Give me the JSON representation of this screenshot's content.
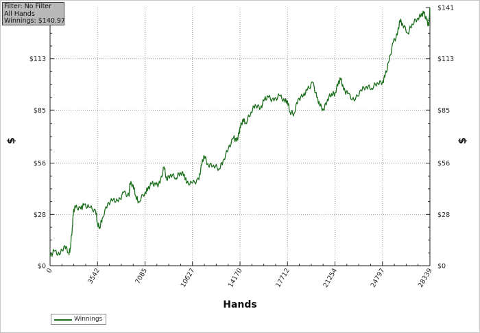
{
  "filter_box": {
    "line1": "Filter: No Filter",
    "line2": "All Hands",
    "line3": "Winnings: $140.97"
  },
  "legend": {
    "label": "Winnings",
    "color": "#1b6e1b"
  },
  "chart_data": {
    "type": "line",
    "xlabel": "Hands",
    "ylabel": "$",
    "xlim": [
      0,
      28339
    ],
    "ylim": [
      0,
      141
    ],
    "x_ticks": [
      "0",
      "3542",
      "7085",
      "10627",
      "14170",
      "17712",
      "21254",
      "24797",
      "28339"
    ],
    "y_ticks": [
      "$0",
      "$28",
      "$56",
      "$85",
      "$113",
      "$141"
    ],
    "grid": true,
    "legend_position": "bottom-left",
    "series": [
      {
        "name": "Winnings",
        "color": "#1b6e1b",
        "points": [
          [
            0,
            5
          ],
          [
            300,
            8
          ],
          [
            700,
            6
          ],
          [
            1100,
            11
          ],
          [
            1400,
            7
          ],
          [
            1500,
            9
          ],
          [
            1650,
            20
          ],
          [
            1750,
            30
          ],
          [
            1900,
            32
          ],
          [
            2300,
            31
          ],
          [
            2500,
            33
          ],
          [
            2900,
            32
          ],
          [
            3400,
            30
          ],
          [
            3542,
            23
          ],
          [
            3700,
            21
          ],
          [
            3900,
            26
          ],
          [
            4300,
            34
          ],
          [
            4700,
            36
          ],
          [
            5100,
            35
          ],
          [
            5500,
            40
          ],
          [
            5900,
            38
          ],
          [
            5950,
            45
          ],
          [
            6200,
            44
          ],
          [
            6400,
            38
          ],
          [
            6600,
            35
          ],
          [
            7085,
            40
          ],
          [
            7300,
            42
          ],
          [
            7600,
            45
          ],
          [
            7900,
            44
          ],
          [
            8200,
            45
          ],
          [
            8500,
            54
          ],
          [
            8700,
            47
          ],
          [
            9000,
            50
          ],
          [
            9400,
            48
          ],
          [
            9700,
            51
          ],
          [
            10000,
            50
          ],
          [
            10200,
            45
          ],
          [
            10627,
            45
          ],
          [
            11100,
            47
          ],
          [
            11300,
            55
          ],
          [
            11500,
            60
          ],
          [
            11800,
            55
          ],
          [
            12200,
            55
          ],
          [
            12600,
            53
          ],
          [
            12900,
            57
          ],
          [
            13300,
            64
          ],
          [
            13700,
            70
          ],
          [
            13900,
            68
          ],
          [
            14100,
            72
          ],
          [
            14170,
            75
          ],
          [
            14400,
            80
          ],
          [
            14600,
            78
          ],
          [
            15000,
            84
          ],
          [
            15300,
            88
          ],
          [
            15700,
            86
          ],
          [
            16000,
            91
          ],
          [
            16300,
            92
          ],
          [
            16700,
            90
          ],
          [
            17100,
            93
          ],
          [
            17500,
            90
          ],
          [
            17712,
            90
          ],
          [
            17900,
            84
          ],
          [
            18200,
            83
          ],
          [
            18500,
            91
          ],
          [
            18900,
            93
          ],
          [
            19200,
            96
          ],
          [
            19600,
            100
          ],
          [
            19900,
            92
          ],
          [
            20100,
            88
          ],
          [
            20400,
            85
          ],
          [
            20700,
            91
          ],
          [
            21000,
            94
          ],
          [
            21254,
            94
          ],
          [
            21500,
            100
          ],
          [
            21700,
            102
          ],
          [
            21900,
            96
          ],
          [
            22200,
            94
          ],
          [
            22700,
            90
          ],
          [
            23200,
            96
          ],
          [
            23600,
            98
          ],
          [
            24000,
            97
          ],
          [
            24400,
            100
          ],
          [
            24797,
            100
          ],
          [
            25000,
            104
          ],
          [
            25300,
            112
          ],
          [
            25600,
            122
          ],
          [
            25900,
            126
          ],
          [
            26100,
            134
          ],
          [
            26300,
            132
          ],
          [
            26700,
            127
          ],
          [
            27000,
            132
          ],
          [
            27400,
            135
          ],
          [
            27700,
            137
          ],
          [
            27900,
            138
          ],
          [
            28100,
            134
          ],
          [
            28250,
            131
          ],
          [
            28339,
            140.97
          ]
        ]
      }
    ]
  }
}
